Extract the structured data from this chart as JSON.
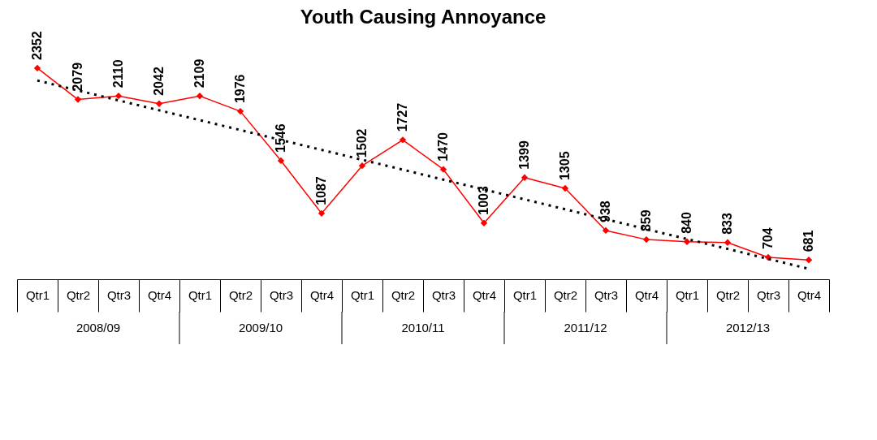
{
  "chart_data": {
    "type": "line",
    "title": "Youth Causing Annoyance",
    "categories": [
      "Qtr1",
      "Qtr2",
      "Qtr3",
      "Qtr4",
      "Qtr1",
      "Qtr2",
      "Qtr3",
      "Qtr4",
      "Qtr1",
      "Qtr2",
      "Qtr3",
      "Qtr4",
      "Qtr1",
      "Qtr2",
      "Qtr3",
      "Qtr4",
      "Qtr1",
      "Qtr2",
      "Qtr3",
      "Qtr4"
    ],
    "series": [
      {
        "color": "#ff0000",
        "marker": "diamond",
        "line_style": "solid",
        "data_labels": true,
        "values": [
          2352,
          2079,
          2110,
          2042,
          2109,
          1976,
          1546,
          1087,
          1502,
          1727,
          1470,
          1003,
          1399,
          1305,
          938,
          859,
          840,
          833,
          704,
          681
        ]
      },
      {
        "type": "line",
        "color": "#000000",
        "marker": "none",
        "line_style": "dotted",
        "values": [
          2244,
          2158,
          2071,
          1985,
          1899,
          1813,
          1726,
          1640,
          1554,
          1468,
          1381,
          1295,
          1209,
          1123,
          1036,
          950,
          864,
          778,
          691,
          604
        ]
      }
    ],
    "annotations": [
      "2008/09",
      "2009/10",
      "2010/11",
      "2011/12",
      "2012/13"
    ],
    "grid": false
  }
}
